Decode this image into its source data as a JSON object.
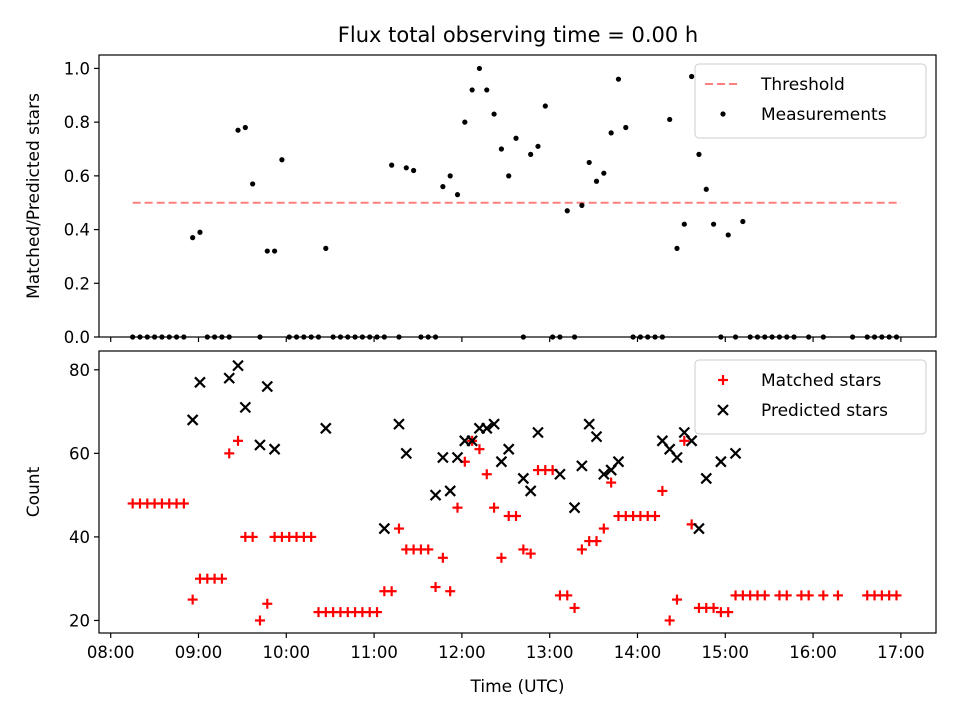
{
  "title": "Flux total observing time = 0.00 h",
  "chart_data": [
    {
      "id": "ratio",
      "type": "scatter",
      "ylabel": "Matched/Predicted stars",
      "xlabel": "",
      "xlim": [
        "07:52",
        "17:24"
      ],
      "ylim": [
        0,
        1.05
      ],
      "yticks": [
        0.0,
        0.2,
        0.4,
        0.6,
        0.8,
        1.0
      ],
      "ytick_labels": [
        "0.0",
        "0.2",
        "0.4",
        "0.6",
        "0.8",
        "1.0"
      ],
      "legend_position": "upper-right",
      "threshold": {
        "name": "Threshold",
        "y": 0.5,
        "x_range": [
          "08:15",
          "17:00"
        ],
        "color": "#ff7f7f"
      },
      "series": [
        {
          "name": "Measurements",
          "color": "#000000",
          "points": [
            [
              "08:15",
              0
            ],
            [
              "08:20",
              0
            ],
            [
              "08:25",
              0
            ],
            [
              "08:30",
              0
            ],
            [
              "08:35",
              0
            ],
            [
              "08:40",
              0
            ],
            [
              "08:45",
              0
            ],
            [
              "08:50",
              0
            ],
            [
              "08:56",
              0.37
            ],
            [
              "09:01",
              0.39
            ],
            [
              "09:06",
              0
            ],
            [
              "09:11",
              0
            ],
            [
              "09:16",
              0
            ],
            [
              "09:21",
              0
            ],
            [
              "09:27",
              0.77
            ],
            [
              "09:32",
              0.78
            ],
            [
              "09:37",
              0.57
            ],
            [
              "09:42",
              0
            ],
            [
              "09:47",
              0.32
            ],
            [
              "09:52",
              0.32
            ],
            [
              "09:57",
              0.66
            ],
            [
              "10:02",
              0
            ],
            [
              "10:07",
              0
            ],
            [
              "10:12",
              0
            ],
            [
              "10:17",
              0
            ],
            [
              "10:22",
              0
            ],
            [
              "10:27",
              0.33
            ],
            [
              "10:32",
              0
            ],
            [
              "10:37",
              0
            ],
            [
              "10:42",
              0
            ],
            [
              "10:47",
              0
            ],
            [
              "10:52",
              0
            ],
            [
              "10:57",
              0
            ],
            [
              "11:02",
              0
            ],
            [
              "11:07",
              0
            ],
            [
              "11:12",
              0.64
            ],
            [
              "11:17",
              0
            ],
            [
              "11:22",
              0.63
            ],
            [
              "11:27",
              0.62
            ],
            [
              "11:32",
              0
            ],
            [
              "11:37",
              0
            ],
            [
              "11:42",
              0
            ],
            [
              "11:47",
              0.56
            ],
            [
              "11:52",
              0.6
            ],
            [
              "11:57",
              0.53
            ],
            [
              "12:02",
              0.8
            ],
            [
              "12:07",
              0.92
            ],
            [
              "12:12",
              1.0
            ],
            [
              "12:17",
              0.92
            ],
            [
              "12:22",
              0.83
            ],
            [
              "12:27",
              0.7
            ],
            [
              "12:32",
              0.6
            ],
            [
              "12:37",
              0.74
            ],
            [
              "12:42",
              0
            ],
            [
              "12:47",
              0.68
            ],
            [
              "12:52",
              0.71
            ],
            [
              "12:57",
              0.86
            ],
            [
              "13:02",
              0
            ],
            [
              "13:07",
              0
            ],
            [
              "13:12",
              0.47
            ],
            [
              "13:17",
              0
            ],
            [
              "13:22",
              0.49
            ],
            [
              "13:27",
              0.65
            ],
            [
              "13:32",
              0.58
            ],
            [
              "13:37",
              0.61
            ],
            [
              "13:42",
              0.76
            ],
            [
              "13:47",
              0.96
            ],
            [
              "13:52",
              0.78
            ],
            [
              "13:57",
              0
            ],
            [
              "14:02",
              0
            ],
            [
              "14:07",
              0
            ],
            [
              "14:12",
              0
            ],
            [
              "14:17",
              0
            ],
            [
              "14:22",
              0.81
            ],
            [
              "14:27",
              0.33
            ],
            [
              "14:32",
              0.42
            ],
            [
              "14:37",
              0.97
            ],
            [
              "14:42",
              0.68
            ],
            [
              "14:47",
              0.55
            ],
            [
              "14:52",
              0.42
            ],
            [
              "14:57",
              0
            ],
            [
              "15:02",
              0.38
            ],
            [
              "15:07",
              0
            ],
            [
              "15:12",
              0.43
            ],
            [
              "15:17",
              0
            ],
            [
              "15:22",
              0
            ],
            [
              "15:27",
              0
            ],
            [
              "15:32",
              0
            ],
            [
              "15:37",
              0
            ],
            [
              "15:42",
              0
            ],
            [
              "15:47",
              0
            ],
            [
              "15:57",
              0
            ],
            [
              "16:07",
              0
            ],
            [
              "16:27",
              0
            ],
            [
              "16:37",
              0
            ],
            [
              "16:42",
              0
            ],
            [
              "16:47",
              0
            ],
            [
              "16:52",
              0
            ],
            [
              "16:57",
              0
            ]
          ]
        }
      ]
    },
    {
      "id": "counts",
      "type": "scatter",
      "ylabel": "Count",
      "xlabel": "Time (UTC)",
      "xlim": [
        "07:52",
        "17:24"
      ],
      "ylim": [
        17,
        84.5
      ],
      "yticks": [
        20,
        40,
        60,
        80
      ],
      "ytick_labels": [
        "20",
        "40",
        "60",
        "80"
      ],
      "xticks": [
        "08:00",
        "09:00",
        "10:00",
        "11:00",
        "12:00",
        "13:00",
        "14:00",
        "15:00",
        "16:00",
        "17:00"
      ],
      "xtick_labels": [
        "08:00",
        "09:00",
        "10:00",
        "11:00",
        "12:00",
        "13:00",
        "14:00",
        "15:00",
        "16:00",
        "17:00"
      ],
      "legend_position": "upper-right",
      "series": [
        {
          "name": "Matched stars",
          "marker": "plus",
          "color": "#ff0000",
          "points": [
            [
              "08:15",
              48
            ],
            [
              "08:20",
              48
            ],
            [
              "08:25",
              48
            ],
            [
              "08:30",
              48
            ],
            [
              "08:35",
              48
            ],
            [
              "08:40",
              48
            ],
            [
              "08:45",
              48
            ],
            [
              "08:50",
              48
            ],
            [
              "08:56",
              25
            ],
            [
              "09:01",
              30
            ],
            [
              "09:06",
              30
            ],
            [
              "09:11",
              30
            ],
            [
              "09:16",
              30
            ],
            [
              "09:21",
              60
            ],
            [
              "09:27",
              63
            ],
            [
              "09:32",
              40
            ],
            [
              "09:37",
              40
            ],
            [
              "09:42",
              20
            ],
            [
              "09:47",
              24
            ],
            [
              "09:52",
              40
            ],
            [
              "09:57",
              40
            ],
            [
              "10:02",
              40
            ],
            [
              "10:07",
              40
            ],
            [
              "10:12",
              40
            ],
            [
              "10:17",
              40
            ],
            [
              "10:22",
              22
            ],
            [
              "10:27",
              22
            ],
            [
              "10:32",
              22
            ],
            [
              "10:37",
              22
            ],
            [
              "10:42",
              22
            ],
            [
              "10:47",
              22
            ],
            [
              "10:52",
              22
            ],
            [
              "10:57",
              22
            ],
            [
              "11:02",
              22
            ],
            [
              "11:07",
              27
            ],
            [
              "11:12",
              27
            ],
            [
              "11:17",
              42
            ],
            [
              "11:22",
              37
            ],
            [
              "11:27",
              37
            ],
            [
              "11:32",
              37
            ],
            [
              "11:37",
              37
            ],
            [
              "11:42",
              28
            ],
            [
              "11:47",
              35
            ],
            [
              "11:52",
              27
            ],
            [
              "11:57",
              47
            ],
            [
              "12:02",
              58
            ],
            [
              "12:07",
              63
            ],
            [
              "12:12",
              61
            ],
            [
              "12:17",
              55
            ],
            [
              "12:22",
              47
            ],
            [
              "12:27",
              35
            ],
            [
              "12:32",
              45
            ],
            [
              "12:37",
              45
            ],
            [
              "12:42",
              37
            ],
            [
              "12:47",
              36
            ],
            [
              "12:52",
              56
            ],
            [
              "12:57",
              56
            ],
            [
              "13:02",
              56
            ],
            [
              "13:07",
              26
            ],
            [
              "13:12",
              26
            ],
            [
              "13:17",
              23
            ],
            [
              "13:22",
              37
            ],
            [
              "13:27",
              39
            ],
            [
              "13:32",
              39
            ],
            [
              "13:37",
              42
            ],
            [
              "13:42",
              53
            ],
            [
              "13:47",
              45
            ],
            [
              "13:52",
              45
            ],
            [
              "13:57",
              45
            ],
            [
              "14:02",
              45
            ],
            [
              "14:07",
              45
            ],
            [
              "14:12",
              45
            ],
            [
              "14:17",
              51
            ],
            [
              "14:22",
              20
            ],
            [
              "14:27",
              25
            ],
            [
              "14:32",
              63
            ],
            [
              "14:37",
              43
            ],
            [
              "14:42",
              23
            ],
            [
              "14:47",
              23
            ],
            [
              "14:52",
              23
            ],
            [
              "14:57",
              22
            ],
            [
              "15:02",
              22
            ],
            [
              "15:07",
              26
            ],
            [
              "15:12",
              26
            ],
            [
              "15:17",
              26
            ],
            [
              "15:22",
              26
            ],
            [
              "15:27",
              26
            ],
            [
              "15:37",
              26
            ],
            [
              "15:42",
              26
            ],
            [
              "15:52",
              26
            ],
            [
              "15:57",
              26
            ],
            [
              "16:07",
              26
            ],
            [
              "16:17",
              26
            ],
            [
              "16:37",
              26
            ],
            [
              "16:42",
              26
            ],
            [
              "16:47",
              26
            ],
            [
              "16:52",
              26
            ],
            [
              "16:57",
              26
            ]
          ]
        },
        {
          "name": "Predicted stars",
          "marker": "x",
          "color": "#000000",
          "points": [
            [
              "08:56",
              68
            ],
            [
              "09:01",
              77
            ],
            [
              "09:21",
              78
            ],
            [
              "09:27",
              81
            ],
            [
              "09:32",
              71
            ],
            [
              "09:42",
              62
            ],
            [
              "09:47",
              76
            ],
            [
              "09:52",
              61
            ],
            [
              "10:27",
              66
            ],
            [
              "11:07",
              42
            ],
            [
              "11:17",
              67
            ],
            [
              "11:22",
              60
            ],
            [
              "11:42",
              50
            ],
            [
              "11:47",
              59
            ],
            [
              "11:52",
              51
            ],
            [
              "11:57",
              59
            ],
            [
              "12:02",
              63
            ],
            [
              "12:07",
              63
            ],
            [
              "12:12",
              66
            ],
            [
              "12:17",
              66
            ],
            [
              "12:22",
              67
            ],
            [
              "12:27",
              58
            ],
            [
              "12:32",
              61
            ],
            [
              "12:42",
              54
            ],
            [
              "12:47",
              51
            ],
            [
              "12:52",
              65
            ],
            [
              "13:07",
              55
            ],
            [
              "13:17",
              47
            ],
            [
              "13:22",
              57
            ],
            [
              "13:27",
              67
            ],
            [
              "13:32",
              64
            ],
            [
              "13:37",
              55
            ],
            [
              "13:42",
              56
            ],
            [
              "13:47",
              58
            ],
            [
              "14:17",
              63
            ],
            [
              "14:22",
              61
            ],
            [
              "14:27",
              59
            ],
            [
              "14:32",
              65
            ],
            [
              "14:37",
              63
            ],
            [
              "14:42",
              42
            ],
            [
              "14:47",
              54
            ],
            [
              "14:57",
              58
            ],
            [
              "15:07",
              60
            ]
          ]
        }
      ]
    }
  ]
}
